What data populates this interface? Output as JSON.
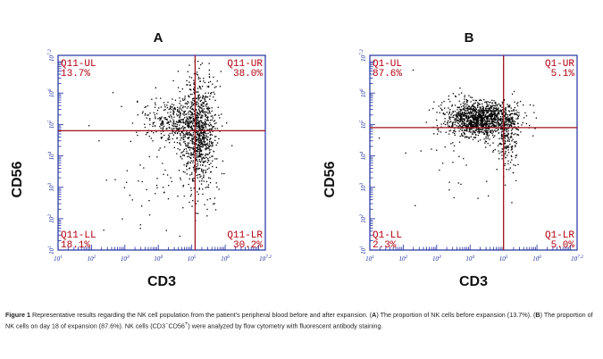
{
  "chart_data": [
    {
      "type": "scatter",
      "panel": "A",
      "xlabel": "CD3",
      "ylabel": "CD56",
      "log_scale": true,
      "xlim": [
        1,
        7.2
      ],
      "ylim": [
        1,
        7.2
      ],
      "x_ticks": [
        "10^1",
        "10^2",
        "10^3",
        "10^4",
        "10^5",
        "10^6",
        "10^7.2"
      ],
      "y_ticks": [
        "10^1",
        "10^2",
        "10^3",
        "10^4",
        "10^5",
        "10^6",
        "10^7.2"
      ],
      "gate_x": 5.1,
      "gate_y": 4.8,
      "quadrants": [
        {
          "name": "Q11-UL",
          "value": "13.7%"
        },
        {
          "name": "Q11-UR",
          "value": "38.0%"
        },
        {
          "name": "Q11-LL",
          "value": "18.1%"
        },
        {
          "name": "Q11-LR",
          "value": "30.2%"
        }
      ],
      "populations": [
        {
          "cx": 5.2,
          "cy": 4.8,
          "sx": 0.25,
          "sy": 0.9,
          "n": 900
        },
        {
          "cx": 4.5,
          "cy": 5.1,
          "sx": 0.45,
          "sy": 0.35,
          "n": 350
        },
        {
          "cx": 4.0,
          "cy": 3.5,
          "sx": 0.9,
          "sy": 1.3,
          "n": 70
        }
      ]
    },
    {
      "type": "scatter",
      "panel": "B",
      "xlabel": "CD3",
      "ylabel": "CD56",
      "log_scale": true,
      "xlim": [
        1,
        7.2
      ],
      "ylim": [
        1,
        7.2
      ],
      "x_ticks": [
        "10^1",
        "10^2",
        "10^3",
        "10^4",
        "10^5",
        "10^6",
        "10^7.2"
      ],
      "y_ticks": [
        "10^1",
        "10^2",
        "10^3",
        "10^4",
        "10^5",
        "10^6",
        "10^7.2"
      ],
      "gate_x": 5.0,
      "gate_y": 4.9,
      "quadrants": [
        {
          "name": "Q1-UL",
          "value": "87.6%"
        },
        {
          "name": "Q1-UR",
          "value": "5.1%"
        },
        {
          "name": "Q1-LL",
          "value": "2.3%"
        },
        {
          "name": "Q1-LR",
          "value": "5.0%"
        }
      ],
      "populations": [
        {
          "cx": 4.3,
          "cy": 5.2,
          "sx": 0.5,
          "sy": 0.28,
          "n": 1300
        },
        {
          "cx": 5.1,
          "cy": 4.6,
          "sx": 0.18,
          "sy": 0.5,
          "n": 200
        },
        {
          "cx": 3.5,
          "cy": 4.2,
          "sx": 1.0,
          "sy": 1.0,
          "n": 60
        }
      ]
    }
  ],
  "caption": {
    "figure_label": "Figure 1",
    "text_1": " Representative results regarding the NK cell population from the patient's peripheral blood before and after expansion. (",
    "a": "A",
    "text_2": ") The proportion of NK cells before expansion (13.7%). (",
    "b": "B",
    "text_3": ") The proportion of NK cells on day 18 of expansion (87.6%). NK cells (CD3",
    "sup_minus": "−",
    "text_4": "CD56",
    "sup_plus": "+",
    "text_5": ") were analyzed by flow cytometry with fluorescent antibody staining."
  }
}
